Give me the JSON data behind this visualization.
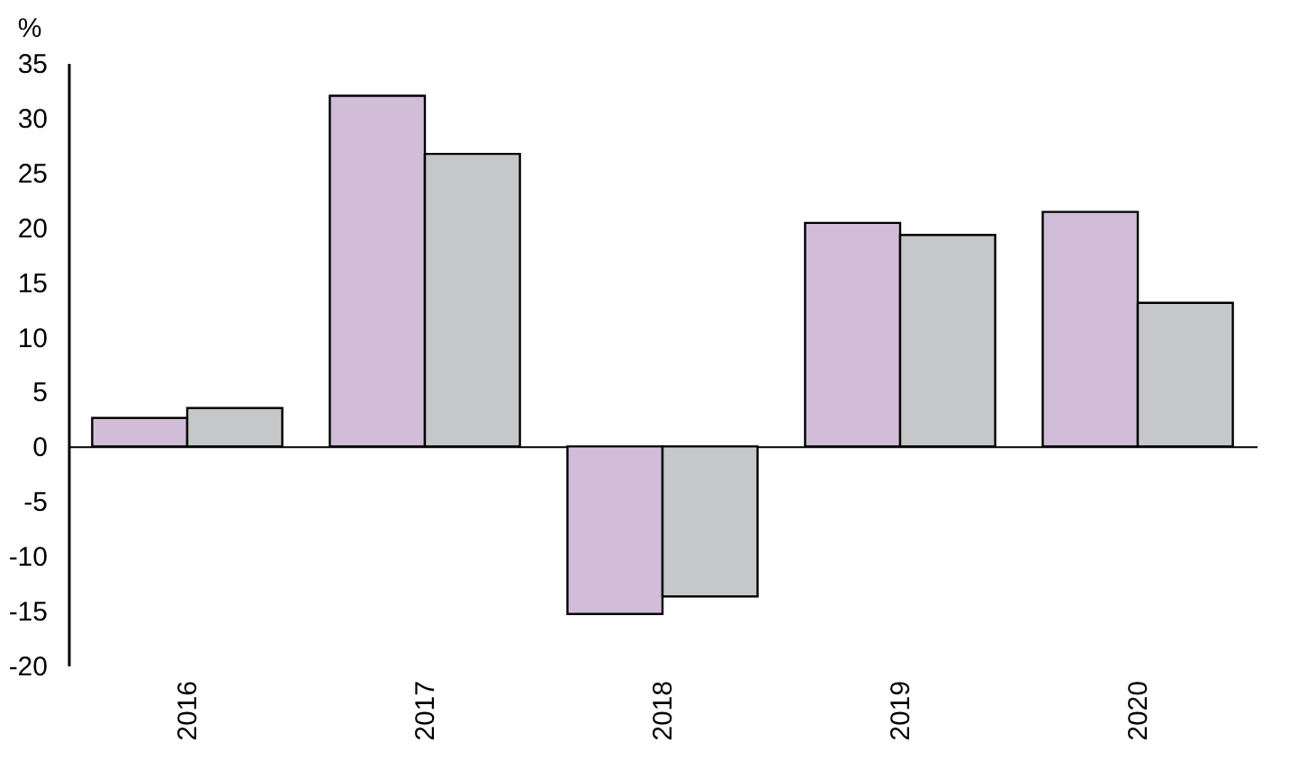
{
  "chart_data": {
    "type": "bar",
    "ylabel": "%",
    "categories": [
      "2016",
      "2017",
      "2018",
      "2019",
      "2020"
    ],
    "series": [
      {
        "color": "#d1bdd7",
        "values": [
          2.6,
          32.0,
          -15.3,
          20.4,
          21.4
        ]
      },
      {
        "color": "#c6c7c9",
        "values": [
          3.5,
          26.7,
          -13.7,
          19.3,
          13.1
        ]
      }
    ],
    "ylim": [
      -20,
      35
    ],
    "yticks": [
      -20,
      -15,
      -10,
      -5,
      0,
      5,
      10,
      15,
      20,
      25,
      30,
      35
    ],
    "legend": false
  }
}
